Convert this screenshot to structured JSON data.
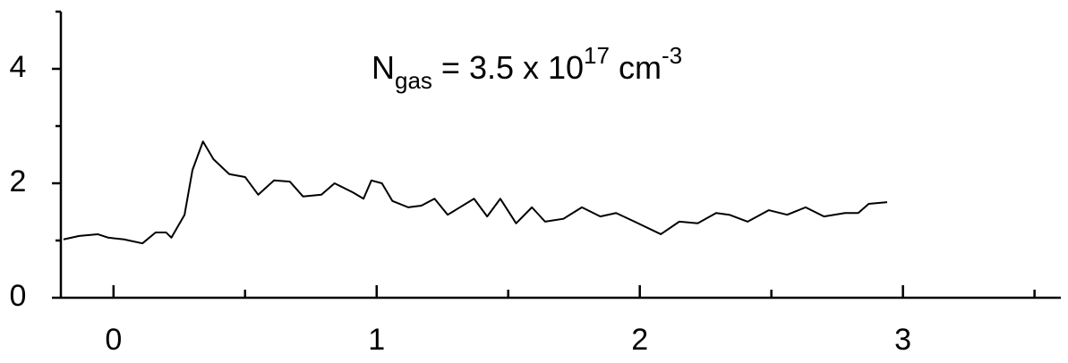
{
  "chart_data": {
    "type": "line",
    "annotation": {
      "base": "N",
      "sub": "gas",
      "mid": " = 3.5 x 10",
      "sup1": "17",
      "unit": " cm",
      "sup2": "-3"
    },
    "x": [
      -0.19,
      -0.13,
      -0.06,
      -0.02,
      0.04,
      0.11,
      0.16,
      0.2,
      0.22,
      0.27,
      0.3,
      0.34,
      0.38,
      0.44,
      0.5,
      0.55,
      0.61,
      0.67,
      0.72,
      0.79,
      0.84,
      0.91,
      0.95,
      0.98,
      1.02,
      1.06,
      1.12,
      1.17,
      1.22,
      1.27,
      1.37,
      1.42,
      1.47,
      1.53,
      1.59,
      1.64,
      1.71,
      1.78,
      1.85,
      1.91,
      1.98,
      2.08,
      2.15,
      2.22,
      2.29,
      2.34,
      2.41,
      2.49,
      2.56,
      2.63,
      2.7,
      2.78,
      2.83,
      2.87,
      2.94
    ],
    "series": [
      {
        "color": "#000000",
        "values": [
          1.02,
          1.08,
          1.11,
          1.05,
          1.02,
          0.95,
          1.14,
          1.14,
          1.05,
          1.45,
          2.23,
          2.73,
          2.42,
          2.16,
          2.11,
          1.8,
          2.05,
          2.03,
          1.77,
          1.8,
          2.0,
          1.84,
          1.73,
          2.05,
          2.0,
          1.69,
          1.58,
          1.61,
          1.73,
          1.45,
          1.73,
          1.42,
          1.73,
          1.3,
          1.58,
          1.33,
          1.38,
          1.58,
          1.42,
          1.48,
          1.33,
          1.11,
          1.33,
          1.3,
          1.48,
          1.45,
          1.33,
          1.53,
          1.45,
          1.58,
          1.42,
          1.48,
          1.48,
          1.64,
          1.67
        ]
      }
    ],
    "xlim": [
      -0.2,
      3.6
    ],
    "xticks": [
      0,
      1,
      2,
      3
    ],
    "xminorticks": [
      0.5,
      1.5,
      2.5,
      3.5
    ],
    "ylim": [
      0,
      5
    ],
    "yticks": [
      0,
      2,
      4
    ],
    "yminorticks": [
      1,
      3,
      5
    ],
    "grid": false
  }
}
